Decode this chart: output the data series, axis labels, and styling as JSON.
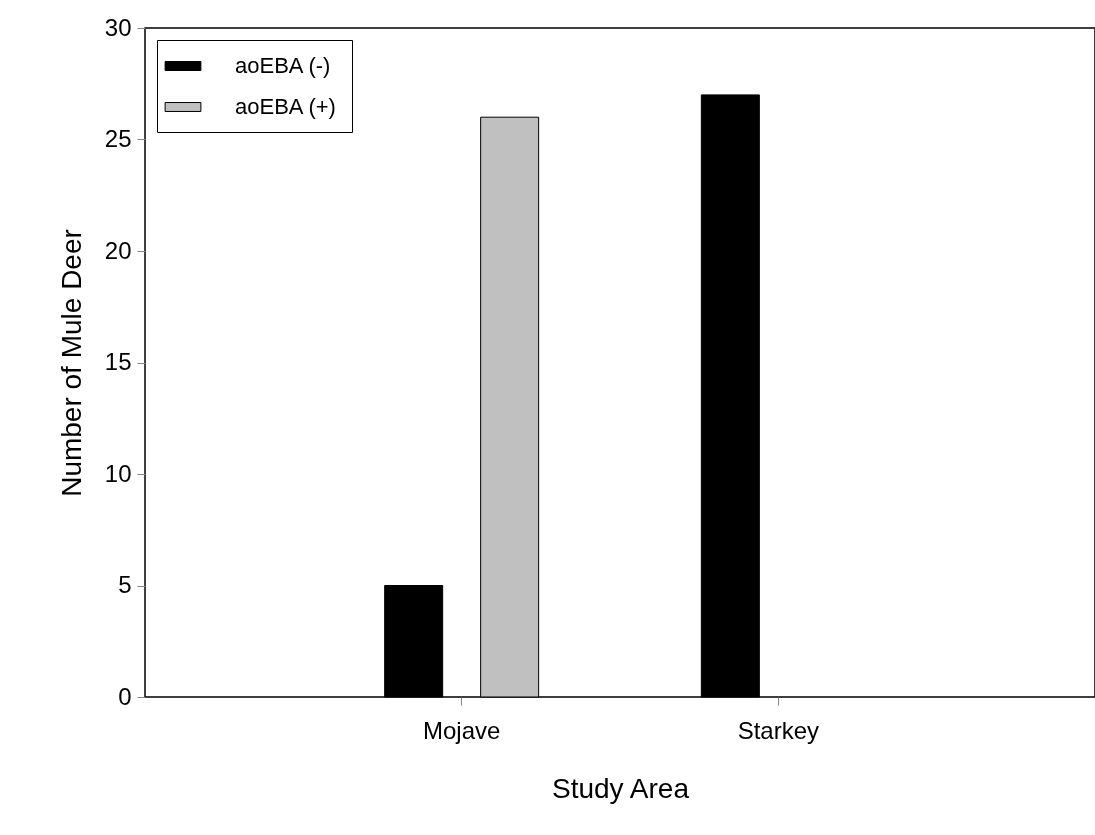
{
  "chart_data": {
    "type": "bar",
    "xlabel": "Study Area",
    "ylabel": "Number of Mule Deer",
    "categories": [
      "Mojave",
      "Starkey"
    ],
    "series": [
      {
        "name": "aoEBA (-)",
        "color": "#000000",
        "values": [
          5,
          27
        ]
      },
      {
        "name": "aoEBA (+)",
        "color": "#c0c0c0",
        "values": [
          26,
          null
        ]
      }
    ],
    "ylim": [
      0,
      30
    ],
    "yticks": [
      0,
      5,
      10,
      15,
      20,
      25,
      30
    ],
    "grid": false,
    "legend": "top left"
  }
}
